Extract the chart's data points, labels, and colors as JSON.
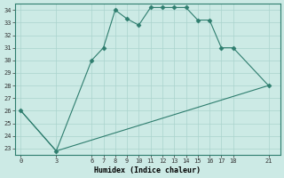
{
  "xlabel": "Humidex (Indice chaleur)",
  "line1_x": [
    0,
    3,
    6,
    7,
    8,
    9,
    10,
    11,
    12,
    13,
    14,
    15,
    16,
    17,
    18,
    21
  ],
  "line1_y": [
    26,
    22.8,
    30,
    31,
    34,
    33.3,
    32.8,
    34.2,
    34.2,
    34.2,
    34.2,
    33.2,
    33.2,
    31,
    31,
    28
  ],
  "line2_x": [
    0,
    3,
    21
  ],
  "line2_y": [
    26,
    22.8,
    28
  ],
  "line_color": "#2e7d6e",
  "bg_color": "#cceae5",
  "grid_color": "#aad4cd",
  "ylim": [
    22.5,
    34.5
  ],
  "xlim": [
    -0.5,
    22
  ],
  "yticks": [
    23,
    24,
    25,
    26,
    27,
    28,
    29,
    30,
    31,
    32,
    33,
    34
  ],
  "xticks": [
    0,
    3,
    6,
    7,
    8,
    9,
    10,
    11,
    12,
    13,
    14,
    15,
    16,
    17,
    18,
    21
  ],
  "marker": "D",
  "marker_size": 2.5,
  "tick_fontsize": 5.0,
  "xlabel_fontsize": 6.0
}
